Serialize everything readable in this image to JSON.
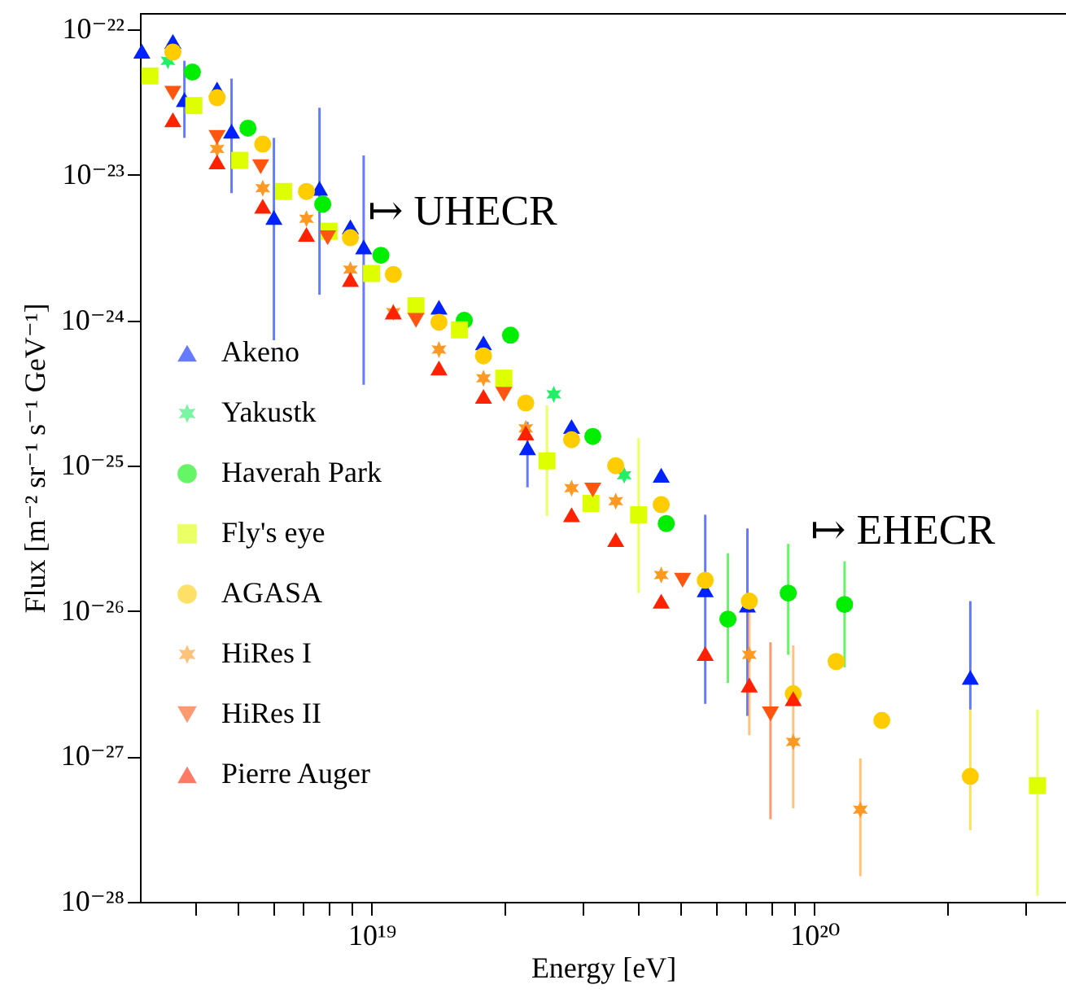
{
  "chart_data": {
    "type": "scatter",
    "xlabel": "Energy [eV]",
    "ylabel": "Flux [m⁻² sr⁻¹ s⁻¹ GeV⁻¹]",
    "log": "xy",
    "grid": false,
    "legend": "left",
    "xlim": [
      3e+18,
      3.7e+20
    ],
    "ylim": [
      1e-28,
      1.3e-22
    ],
    "xticks": [
      {
        "value": 4e+18,
        "label": null
      },
      {
        "value": 5e+18,
        "label": null
      },
      {
        "value": 6e+18,
        "label": null
      },
      {
        "value": 7e+18,
        "label": null
      },
      {
        "value": 8e+18,
        "label": null
      },
      {
        "value": 9e+18,
        "label": null
      },
      {
        "value": 1e+19,
        "label": "10¹⁹"
      },
      {
        "value": 2e+19,
        "label": null
      },
      {
        "value": 3e+19,
        "label": null
      },
      {
        "value": 4e+19,
        "label": null
      },
      {
        "value": 5e+19,
        "label": null
      },
      {
        "value": 6e+19,
        "label": null
      },
      {
        "value": 7e+19,
        "label": null
      },
      {
        "value": 8e+19,
        "label": null
      },
      {
        "value": 9e+19,
        "label": null
      },
      {
        "value": 1e+20,
        "label": "10²⁰"
      },
      {
        "value": 2e+20,
        "label": null
      },
      {
        "value": 3e+20,
        "label": null
      }
    ],
    "yticks": [
      {
        "value": 1e-28,
        "label": "10⁻²⁸"
      },
      {
        "value": 1e-27,
        "label": "10⁻²⁷"
      },
      {
        "value": 1e-26,
        "label": "10⁻²⁶"
      },
      {
        "value": 1e-25,
        "label": "10⁻²⁵"
      },
      {
        "value": 1e-24,
        "label": "10⁻²⁴"
      },
      {
        "value": 1e-23,
        "label": "10⁻²³"
      },
      {
        "value": 1e-22,
        "label": "10⁻²²"
      }
    ],
    "annotations": [
      "↦ UHECR",
      "↦ EHECR"
    ],
    "series": [
      {
        "name": "Akeno",
        "color": "#0022ff",
        "marker": "triangle",
        "x": [
          3.03e+18,
          3.56e+18,
          3.78e+18,
          4.48e+18,
          4.83e+18,
          6.02e+18,
          7.63e+18,
          8.96e+18,
          9.6e+18,
          1.42e+19,
          1.79e+19,
          2.25e+19,
          2.83e+19,
          4.51e+19,
          5.67e+19,
          7.06e+19,
          2.25e+20
        ],
        "values": [
          7.1e-23,
          8.3e-23,
          3.3e-23,
          3.9e-23,
          2e-23,
          5.1e-24,
          8.1e-24,
          4.4e-24,
          3.2e-24,
          1.23e-24,
          7e-25,
          1.33e-25,
          1.86e-25,
          8.6e-26,
          1.4e-26,
          1.1e-26,
          3.5e-27
        ],
        "errors": [
          null,
          null,
          [
            1.8e-23,
            6.1e-23
          ],
          null,
          [
            7.5e-24,
            4.6e-23
          ],
          [
            7.3e-25,
            1.8e-23
          ],
          [
            1.5e-24,
            2.9e-23
          ],
          null,
          [
            3.6e-25,
            1.36e-23
          ],
          null,
          null,
          [
            7.1e-26,
            2e-25
          ],
          null,
          null,
          [
            2.3e-27,
            4.6e-26
          ],
          [
            1.9e-27,
            3.7e-26
          ],
          [
            2.1e-27,
            1.17e-26
          ]
        ]
      },
      {
        "name": "Yakustk",
        "color": "#22ee66",
        "marker": "cross",
        "x": [
          3.47e+18,
          2.58e+19,
          3.72e+19
        ],
        "values": [
          6.1e-23,
          3.1e-25,
          8.6e-26
        ]
      },
      {
        "name": "Haverah Park",
        "color": "#00ee00",
        "marker": "circle",
        "x": [
          3.94e+18,
          5.26e+18,
          7.76e+18,
          1.05e+19,
          1.62e+19,
          2.06e+19,
          3.16e+19,
          4.63e+19,
          6.38e+19,
          8.73e+19,
          1.17e+20
        ],
        "values": [
          5.1e-23,
          2.1e-23,
          6.3e-24,
          2.8e-24,
          1e-24,
          7.9e-25,
          1.59e-25,
          4e-26,
          8.8e-27,
          1.33e-26,
          1.11e-26
        ],
        "errors": [
          null,
          null,
          null,
          null,
          null,
          null,
          null,
          null,
          [
            3.2e-27,
            2.5e-26
          ],
          [
            5e-27,
            2.9e-26
          ],
          [
            4.1e-27,
            2.2e-26
          ]
        ]
      },
      {
        "name": "Fly's eye",
        "color": "#ddff00",
        "marker": "square",
        "x": [
          3.16e+18,
          3.97e+18,
          5.04e+18,
          6.33e+18,
          8.02e+18,
          1e+19,
          1.26e+19,
          1.58e+19,
          1.99e+19,
          2.49e+19,
          3.13e+19,
          4.01e+19,
          3.19e+20
        ],
        "values": [
          4.8e-23,
          3e-23,
          1.26e-23,
          7.7e-24,
          4.1e-24,
          2.1e-24,
          1.26e-24,
          8.6e-25,
          4e-25,
          1.08e-25,
          5.5e-26,
          4.6e-26,
          6.3e-28
        ],
        "errors": [
          null,
          null,
          null,
          null,
          null,
          null,
          null,
          null,
          null,
          [
            4.5e-26,
            2.6e-25
          ],
          null,
          [
            1.33e-26,
            1.55e-25
          ],
          [
            1.1e-28,
            2.1e-27
          ]
        ]
      },
      {
        "name": "AGASA",
        "color": "#ffcc00",
        "marker": "circle",
        "x": [
          3.56e+18,
          4.48e+18,
          5.68e+18,
          7.13e+18,
          8.96e+18,
          1.12e+19,
          1.42e+19,
          1.79e+19,
          2.23e+19,
          2.83e+19,
          3.56e+19,
          4.51e+19,
          5.67e+19,
          7.13e+19,
          8.96e+19,
          1.12e+20,
          1.42e+20,
          2.25e+20
        ],
        "values": [
          7e-23,
          3.4e-23,
          1.63e-23,
          7.7e-24,
          3.7e-24,
          2.07e-24,
          9.7e-25,
          5.7e-25,
          2.7e-25,
          1.51e-25,
          1e-25,
          5.4e-26,
          1.63e-26,
          1.17e-26,
          2.7e-27,
          4.5e-27,
          1.77e-27,
          7.3e-28
        ],
        "errors": [
          null,
          null,
          null,
          null,
          null,
          null,
          null,
          null,
          null,
          null,
          null,
          null,
          null,
          null,
          null,
          null,
          null,
          [
            3.1e-28,
            2.1e-27
          ]
        ]
      },
      {
        "name": "HiRes I",
        "color": "#ff9922",
        "marker": "cross",
        "x": [
          4.48e+18,
          5.68e+18,
          7.13e+18,
          8.96e+18,
          1.12e+19,
          1.42e+19,
          1.79e+19,
          2.23e+19,
          2.83e+19,
          3.56e+19,
          4.51e+19,
          7.13e+19,
          8.96e+19,
          1.27e+20
        ],
        "values": [
          1.51e-23,
          8.1e-24,
          5e-24,
          2.23e-24,
          1.14e-24,
          6.3e-25,
          4e-25,
          1.81e-25,
          7e-26,
          5.7e-26,
          1.77e-26,
          5e-27,
          1.26e-27,
          4.3e-28
        ],
        "errors": [
          null,
          null,
          null,
          null,
          null,
          null,
          null,
          null,
          null,
          null,
          null,
          [
            1.4e-27,
            1.08e-26
          ],
          [
            4.4e-28,
            5.8e-27
          ],
          [
            1.5e-28,
            9.7e-28
          ]
        ]
      },
      {
        "name": "HiRes II",
        "color": "#ff5511",
        "marker": "triangle-down",
        "x": [
          3.56e+18,
          4.48e+18,
          5.62e+18,
          7.96e+18,
          1.26e+19,
          1.99e+19,
          3.16e+19,
          5.04e+19,
          7.96e+19
        ],
        "values": [
          3.65e-23,
          1.81e-23,
          1.14e-23,
          3.7e-24,
          1e-24,
          3.1e-25,
          6.8e-26,
          1.63e-26,
          1.96e-27
        ],
        "errors": [
          null,
          null,
          null,
          null,
          null,
          null,
          null,
          null,
          [
            3.7e-28,
            6.1e-27
          ]
        ]
      },
      {
        "name": "Pierre Auger",
        "color": "#ff2200",
        "marker": "triangle",
        "x": [
          3.56e+18,
          4.48e+18,
          5.68e+18,
          7.13e+18,
          8.96e+18,
          1.12e+19,
          1.42e+19,
          1.79e+19,
          2.23e+19,
          2.83e+19,
          3.56e+19,
          4.51e+19,
          5.67e+19,
          7.13e+19,
          8.96e+19
        ],
        "values": [
          2.4e-23,
          1.23e-23,
          6.1e-24,
          3.9e-24,
          1.91e-24,
          1.14e-24,
          4.7e-25,
          3e-25,
          1.68e-25,
          4.6e-26,
          3.1e-26,
          1.17e-26,
          5.1e-27,
          3.1e-27,
          2.5e-27
        ]
      }
    ]
  }
}
